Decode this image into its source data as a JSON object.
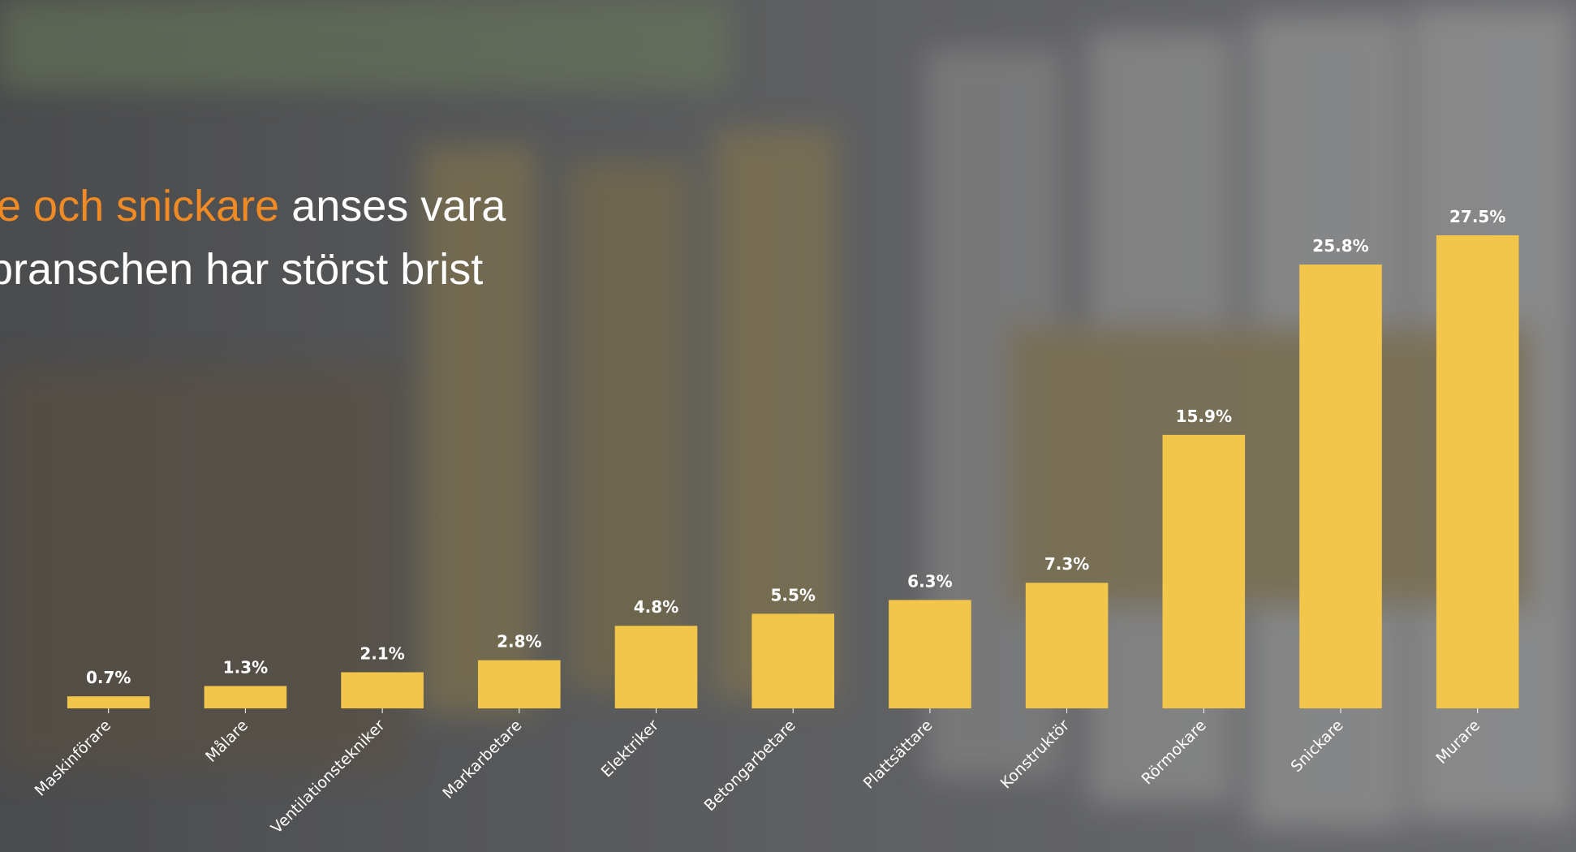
{
  "chart_data": {
    "type": "bar",
    "title_lines": [
      [
        {
          "text": "e och snickare",
          "highlight": true
        },
        {
          "text": " anses vara",
          "highlight": false
        }
      ],
      [
        {
          "text": "branschen har störst brist",
          "highlight": false
        }
      ]
    ],
    "categories": [
      "Maskinförare",
      "Målare",
      "Ventilationstekniker",
      "Markarbetare",
      "Elektriker",
      "Betongarbetare",
      "Plattsättare",
      "Konstruktör",
      "Rörmokare",
      "Snickare",
      "Murare"
    ],
    "values": [
      0.7,
      1.3,
      2.1,
      2.8,
      4.8,
      5.5,
      6.3,
      7.3,
      15.9,
      25.8,
      27.5
    ],
    "value_labels": [
      "0.7%",
      "1.3%",
      "2.1%",
      "2.8%",
      "4.8%",
      "5.5%",
      "6.3%",
      "7.3%",
      "15.9%",
      "25.8%",
      "27.5%"
    ],
    "color": "#f2c64b"
  }
}
